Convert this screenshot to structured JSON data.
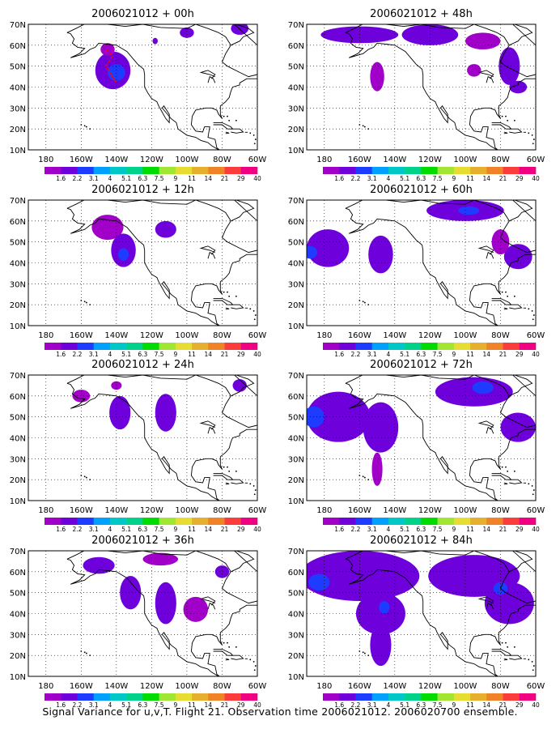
{
  "caption": "Signal Variance for u,v,T. Flight 21. Observation time 2006021012. 2006020700 ensemble.",
  "colors": {
    "levels": [
      "#a000c8",
      "#6e00dc",
      "#1e3cff",
      "#00a0ff",
      "#00c8c8",
      "#00d28c",
      "#00dc00",
      "#a0e632",
      "#e6dc32",
      "#e6af2d",
      "#f08228",
      "#fa3c3c",
      "#f00082"
    ],
    "land_outline": "#000000",
    "grid": "#000000",
    "flight_track": "#ff0000"
  },
  "chart_data": [
    {
      "type": "heatmap",
      "title": "2006021012 + 00h",
      "xticks": [
        "180",
        "160W",
        "140W",
        "120W",
        "100W",
        "80W",
        "60W"
      ],
      "yticks": [
        "10N",
        "20N",
        "30N",
        "40N",
        "50N",
        "60N",
        "70N"
      ],
      "xlim": [
        -190,
        -60
      ],
      "ylim": [
        10,
        70
      ],
      "colorbar": [
        "1.6",
        "2.2",
        "3.1",
        "4",
        "5.1",
        "6.3",
        "7.5",
        "9",
        "11",
        "14",
        "21",
        "29",
        "40"
      ],
      "blobs": [
        {
          "lon": -142,
          "lat": 48,
          "rlon": 10,
          "rlat": 9,
          "level": 1
        },
        {
          "lon": -140,
          "lat": 47,
          "rlon": 5,
          "rlat": 4,
          "level": 2
        },
        {
          "lon": -145,
          "lat": 58,
          "rlon": 4,
          "rlat": 3,
          "level": 0
        },
        {
          "lon": -100,
          "lat": 66,
          "rlon": 4,
          "rlat": 2.5,
          "level": 1
        },
        {
          "lon": -70,
          "lat": 68,
          "rlon": 5,
          "rlat": 3,
          "level": 1
        },
        {
          "lon": -118,
          "lat": 62,
          "rlon": 1.5,
          "rlat": 1.5,
          "level": 1
        }
      ],
      "flight_track": [
        [
          -146,
          58
        ],
        [
          -142,
          55
        ],
        [
          -146,
          50
        ],
        [
          -140,
          42
        ],
        [
          -143,
          46
        ]
      ]
    },
    {
      "type": "heatmap",
      "title": "2006021012 + 48h",
      "xticks": [
        "180",
        "160W",
        "140W",
        "120W",
        "100W",
        "80W",
        "60W"
      ],
      "yticks": [
        "10N",
        "20N",
        "30N",
        "40N",
        "50N",
        "60N",
        "70N"
      ],
      "xlim": [
        -190,
        -60
      ],
      "ylim": [
        10,
        70
      ],
      "colorbar": [
        "1.6",
        "2.2",
        "3.1",
        "4",
        "5.1",
        "6.3",
        "7.5",
        "9",
        "11",
        "14",
        "21",
        "29",
        "40"
      ],
      "blobs": [
        {
          "lon": -160,
          "lat": 65,
          "rlon": 22,
          "rlat": 4,
          "level": 1
        },
        {
          "lon": -120,
          "lat": 65,
          "rlon": 16,
          "rlat": 5,
          "level": 1
        },
        {
          "lon": -150,
          "lat": 45,
          "rlon": 4,
          "rlat": 7,
          "level": 0
        },
        {
          "lon": -95,
          "lat": 48,
          "rlon": 4,
          "rlat": 3,
          "level": 0
        },
        {
          "lon": -75,
          "lat": 50,
          "rlon": 6,
          "rlat": 9,
          "level": 1
        },
        {
          "lon": -70,
          "lat": 40,
          "rlon": 5,
          "rlat": 3,
          "level": 1
        },
        {
          "lon": -90,
          "lat": 62,
          "rlon": 10,
          "rlat": 4,
          "level": 0
        }
      ],
      "flight_track": []
    },
    {
      "type": "heatmap",
      "title": "2006021012 + 12h",
      "xticks": [
        "180",
        "160W",
        "140W",
        "120W",
        "100W",
        "80W",
        "60W"
      ],
      "yticks": [
        "10N",
        "20N",
        "30N",
        "40N",
        "50N",
        "60N",
        "70N"
      ],
      "xlim": [
        -190,
        -60
      ],
      "ylim": [
        10,
        70
      ],
      "colorbar": [
        "1.6",
        "2.2",
        "3.1",
        "4",
        "5.1",
        "6.3",
        "7.5",
        "9",
        "11",
        "14",
        "21",
        "29",
        "40"
      ],
      "blobs": [
        {
          "lon": -145,
          "lat": 57,
          "rlon": 9,
          "rlat": 6,
          "level": 0
        },
        {
          "lon": -136,
          "lat": 46,
          "rlon": 7,
          "rlat": 8,
          "level": 1
        },
        {
          "lon": -136,
          "lat": 44,
          "rlon": 3,
          "rlat": 3,
          "level": 2
        },
        {
          "lon": -112,
          "lat": 56,
          "rlon": 6,
          "rlat": 4,
          "level": 1
        }
      ],
      "flight_track": []
    },
    {
      "type": "heatmap",
      "title": "2006021012 + 60h",
      "xticks": [
        "180",
        "160W",
        "140W",
        "120W",
        "100W",
        "80W",
        "60W"
      ],
      "yticks": [
        "10N",
        "20N",
        "30N",
        "40N",
        "50N",
        "60N",
        "70N"
      ],
      "xlim": [
        -190,
        -60
      ],
      "ylim": [
        10,
        70
      ],
      "colorbar": [
        "1.6",
        "2.2",
        "3.1",
        "4",
        "5.1",
        "6.3",
        "7.5",
        "9",
        "11",
        "14",
        "21",
        "29",
        "40"
      ],
      "blobs": [
        {
          "lon": -178,
          "lat": 47,
          "rlon": 12,
          "rlat": 9,
          "level": 1
        },
        {
          "lon": -188,
          "lat": 45,
          "rlon": 4,
          "rlat": 3,
          "level": 2
        },
        {
          "lon": -148,
          "lat": 44,
          "rlon": 7,
          "rlat": 9,
          "level": 1
        },
        {
          "lon": -100,
          "lat": 65,
          "rlon": 22,
          "rlat": 5,
          "level": 1
        },
        {
          "lon": -98,
          "lat": 65,
          "rlon": 6,
          "rlat": 2,
          "level": 2
        },
        {
          "lon": -70,
          "lat": 43,
          "rlon": 8,
          "rlat": 6,
          "level": 1
        },
        {
          "lon": -80,
          "lat": 50,
          "rlon": 5,
          "rlat": 6,
          "level": 0
        }
      ],
      "flight_track": []
    },
    {
      "type": "heatmap",
      "title": "2006021012 + 24h",
      "xticks": [
        "180",
        "160W",
        "140W",
        "120W",
        "100W",
        "80W",
        "60W"
      ],
      "yticks": [
        "10N",
        "20N",
        "30N",
        "40N",
        "50N",
        "60N",
        "70N"
      ],
      "xlim": [
        -190,
        -60
      ],
      "ylim": [
        10,
        70
      ],
      "colorbar": [
        "1.6",
        "2.2",
        "3.1",
        "4",
        "5.1",
        "6.3",
        "7.5",
        "9",
        "11",
        "14",
        "21",
        "29",
        "40"
      ],
      "blobs": [
        {
          "lon": -160,
          "lat": 60,
          "rlon": 5,
          "rlat": 3,
          "level": 0
        },
        {
          "lon": -138,
          "lat": 52,
          "rlon": 6,
          "rlat": 8,
          "level": 1
        },
        {
          "lon": -112,
          "lat": 52,
          "rlon": 6,
          "rlat": 9,
          "level": 1
        },
        {
          "lon": -140,
          "lat": 65,
          "rlon": 3,
          "rlat": 2,
          "level": 0
        },
        {
          "lon": -70,
          "lat": 65,
          "rlon": 4,
          "rlat": 3,
          "level": 1
        }
      ],
      "flight_track": []
    },
    {
      "type": "heatmap",
      "title": "2006021012 + 72h",
      "xticks": [
        "180",
        "160W",
        "140W",
        "120W",
        "100W",
        "80W",
        "60W"
      ],
      "yticks": [
        "10N",
        "20N",
        "30N",
        "40N",
        "50N",
        "60N",
        "70N"
      ],
      "xlim": [
        -190,
        -60
      ],
      "ylim": [
        10,
        70
      ],
      "colorbar": [
        "1.6",
        "2.2",
        "3.1",
        "4",
        "5.1",
        "6.3",
        "7.5",
        "9",
        "11",
        "14",
        "21",
        "29",
        "40"
      ],
      "blobs": [
        {
          "lon": -172,
          "lat": 50,
          "rlon": 18,
          "rlat": 12,
          "level": 1
        },
        {
          "lon": -186,
          "lat": 50,
          "rlon": 6,
          "rlat": 5,
          "level": 2
        },
        {
          "lon": -148,
          "lat": 45,
          "rlon": 10,
          "rlat": 12,
          "level": 1
        },
        {
          "lon": -150,
          "lat": 25,
          "rlon": 3,
          "rlat": 8,
          "level": 0
        },
        {
          "lon": -95,
          "lat": 62,
          "rlon": 22,
          "rlat": 7,
          "level": 1
        },
        {
          "lon": -90,
          "lat": 64,
          "rlon": 6,
          "rlat": 3,
          "level": 2
        },
        {
          "lon": -70,
          "lat": 45,
          "rlon": 10,
          "rlat": 7,
          "level": 1
        }
      ],
      "flight_track": []
    },
    {
      "type": "heatmap",
      "title": "2006021012 + 36h",
      "xticks": [
        "180",
        "160W",
        "140W",
        "120W",
        "100W",
        "80W",
        "60W"
      ],
      "yticks": [
        "10N",
        "20N",
        "30N",
        "40N",
        "50N",
        "60N",
        "70N"
      ],
      "xlim": [
        -190,
        -60
      ],
      "ylim": [
        10,
        70
      ],
      "colorbar": [
        "1.6",
        "2.2",
        "3.1",
        "4",
        "5.1",
        "6.3",
        "7.5",
        "9",
        "11",
        "14",
        "21",
        "29",
        "40"
      ],
      "blobs": [
        {
          "lon": -150,
          "lat": 63,
          "rlon": 9,
          "rlat": 4,
          "level": 1
        },
        {
          "lon": -132,
          "lat": 50,
          "rlon": 6,
          "rlat": 8,
          "level": 1
        },
        {
          "lon": -112,
          "lat": 45,
          "rlon": 6,
          "rlat": 10,
          "level": 1
        },
        {
          "lon": -95,
          "lat": 42,
          "rlon": 7,
          "rlat": 6,
          "level": 0
        },
        {
          "lon": -115,
          "lat": 66,
          "rlon": 10,
          "rlat": 3,
          "level": 0
        },
        {
          "lon": -80,
          "lat": 60,
          "rlon": 4,
          "rlat": 3,
          "level": 1
        }
      ],
      "flight_track": []
    },
    {
      "type": "heatmap",
      "title": "2006021012 + 84h",
      "xticks": [
        "180",
        "160W",
        "140W",
        "120W",
        "100W",
        "80W",
        "60W"
      ],
      "yticks": [
        "10N",
        "20N",
        "30N",
        "40N",
        "50N",
        "60N",
        "70N"
      ],
      "xlim": [
        -190,
        -60
      ],
      "ylim": [
        10,
        70
      ],
      "colorbar": [
        "1.6",
        "2.2",
        "3.1",
        "4",
        "5.1",
        "6.3",
        "7.5",
        "9",
        "11",
        "14",
        "21",
        "29",
        "40"
      ],
      "blobs": [
        {
          "lon": -160,
          "lat": 58,
          "rlon": 34,
          "rlat": 12,
          "level": 1
        },
        {
          "lon": -183,
          "lat": 55,
          "rlon": 6,
          "rlat": 4,
          "level": 2
        },
        {
          "lon": -148,
          "lat": 40,
          "rlon": 14,
          "rlat": 10,
          "level": 1
        },
        {
          "lon": -148,
          "lat": 25,
          "rlon": 6,
          "rlat": 10,
          "level": 1
        },
        {
          "lon": -146,
          "lat": 43,
          "rlon": 3,
          "rlat": 3,
          "level": 2
        },
        {
          "lon": -95,
          "lat": 58,
          "rlon": 26,
          "rlat": 10,
          "level": 1
        },
        {
          "lon": -75,
          "lat": 45,
          "rlon": 14,
          "rlat": 10,
          "level": 1
        },
        {
          "lon": -80,
          "lat": 52,
          "rlon": 4,
          "rlat": 3,
          "level": 2
        }
      ],
      "flight_track": []
    }
  ]
}
